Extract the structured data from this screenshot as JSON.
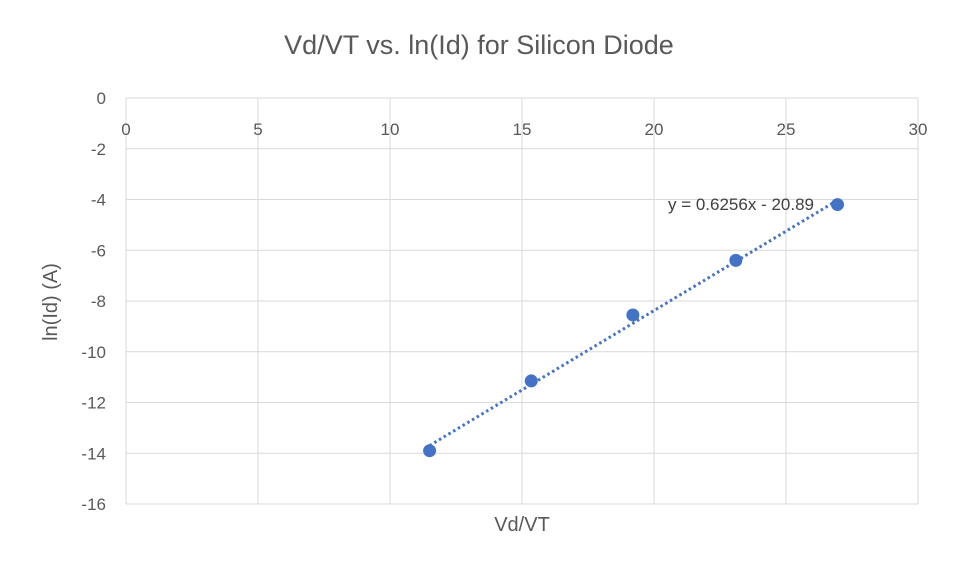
{
  "chart_data": {
    "type": "scatter",
    "title": "Vd/VT vs. ln(Id) for Silicon Diode",
    "xlabel": "Vd/VT",
    "ylabel": "ln(Id) (A)",
    "xlim": [
      0,
      30
    ],
    "ylim": [
      -16,
      0
    ],
    "x_ticks": [
      0,
      5,
      10,
      15,
      20,
      25,
      30
    ],
    "y_ticks": [
      0,
      -2,
      -4,
      -6,
      -8,
      -10,
      -12,
      -14,
      -16
    ],
    "x_axis_position": "top (at y = 0)",
    "grid": true,
    "legend": "none",
    "series": [
      {
        "x": [
          11.5,
          15.35,
          19.2,
          23.1,
          26.95
        ],
        "y": [
          -13.9,
          -11.15,
          -8.55,
          -6.4,
          -4.2
        ],
        "color": "#4472C4",
        "marker": "circle"
      }
    ],
    "trendline": {
      "type": "linear",
      "slope": 0.6256,
      "intercept": -20.89,
      "equation_label": "y = 0.6256x - 20.89",
      "style": "dotted",
      "color": "#4472C4",
      "x_range": [
        11.5,
        26.95
      ]
    },
    "colors": {
      "grid": "#d9d9d9",
      "text": "#595959",
      "marker": "#4472C4"
    }
  }
}
